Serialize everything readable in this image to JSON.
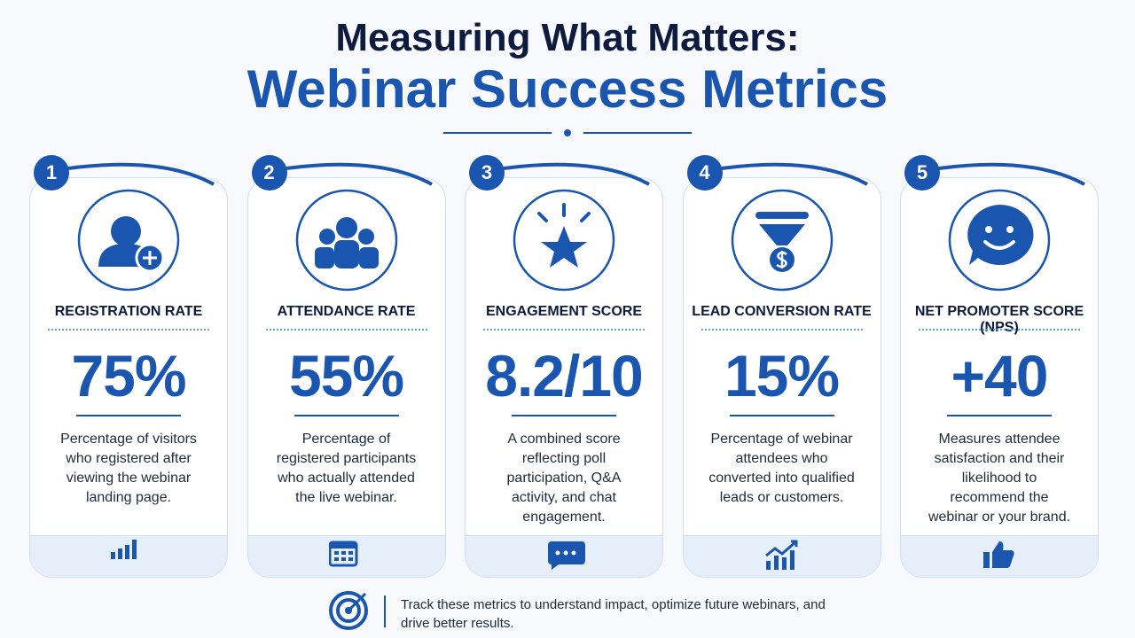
{
  "header": {
    "title_line1": "Measuring What Matters:",
    "title_line2": "Webinar Success Metrics"
  },
  "cards": [
    {
      "number": "1",
      "label": "REGISTRATION RATE",
      "value": "75%",
      "description": "Percentage of visitors who registered after viewing the webinar landing page."
    },
    {
      "number": "2",
      "label": "ATTENDANCE RATE",
      "value": "55%",
      "description": "Percentage of registered participants who actually attended the live webinar."
    },
    {
      "number": "3",
      "label": "ENGAGEMENT SCORE",
      "value": "8.2/10",
      "description": "A combined score reflecting poll participation, Q&A activity, and chat engagement."
    },
    {
      "number": "4",
      "label": "LEAD CONVERSION RATE",
      "value": "15%",
      "description": "Percentage of webinar attendees who converted into qualified leads or customers."
    },
    {
      "number": "5",
      "label": "NET PROMOTER SCORE (NPS)",
      "value": "+40",
      "description": "Measures attendee satisfaction and their likelihood to recommend the webinar or your brand."
    }
  ],
  "footer": {
    "text": "Track these metrics to understand impact, optimize future webinars, and drive better results."
  }
}
